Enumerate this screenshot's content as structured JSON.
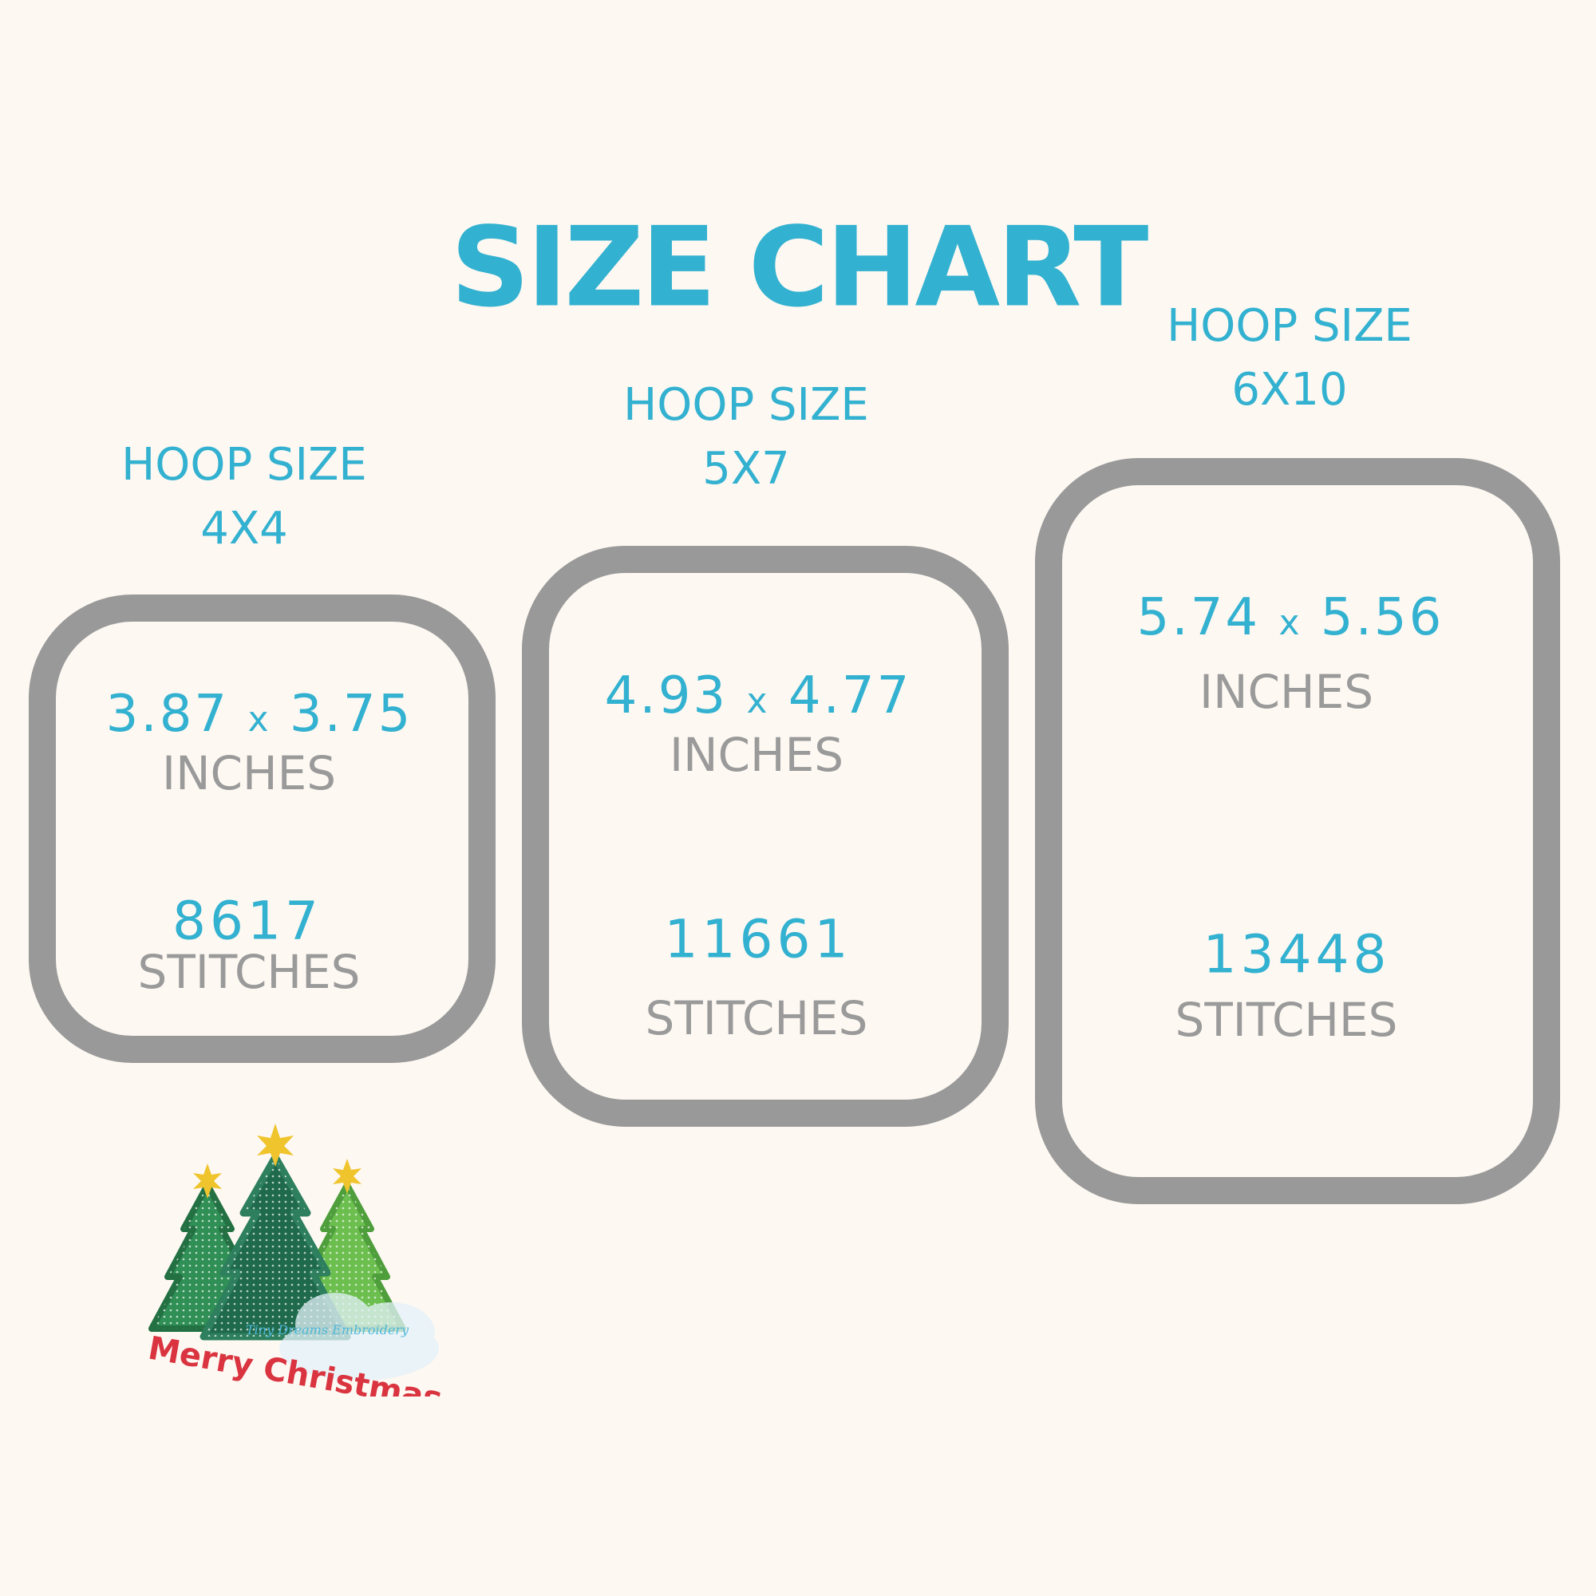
{
  "title": "SIZE CHART",
  "hoops": [
    {
      "label": "HOOP SIZE",
      "size": "4X4",
      "width": "3.87",
      "times": "x",
      "height": "3.75",
      "unit": "INCHES",
      "stitches": "8617",
      "stitches_label": "STITCHES"
    },
    {
      "label": "HOOP SIZE",
      "size": "5X7",
      "width": "4.93",
      "times": "x",
      "height": "4.77",
      "unit": "INCHES",
      "stitches": "11661",
      "stitches_label": "STITCHES"
    },
    {
      "label": "HOOP SIZE",
      "size": "6X10",
      "width": "5.74",
      "times": "x",
      "height": "5.56",
      "unit": "INCHES",
      "stitches": "13448",
      "stitches_label": "STITCHES"
    }
  ],
  "logo": {
    "text": "Merry Christmas",
    "watermark": "Tiny Dreams Embroidery"
  },
  "colors": {
    "accent": "#33b1d0",
    "frame": "#999999",
    "background": "#fdf8f2"
  }
}
